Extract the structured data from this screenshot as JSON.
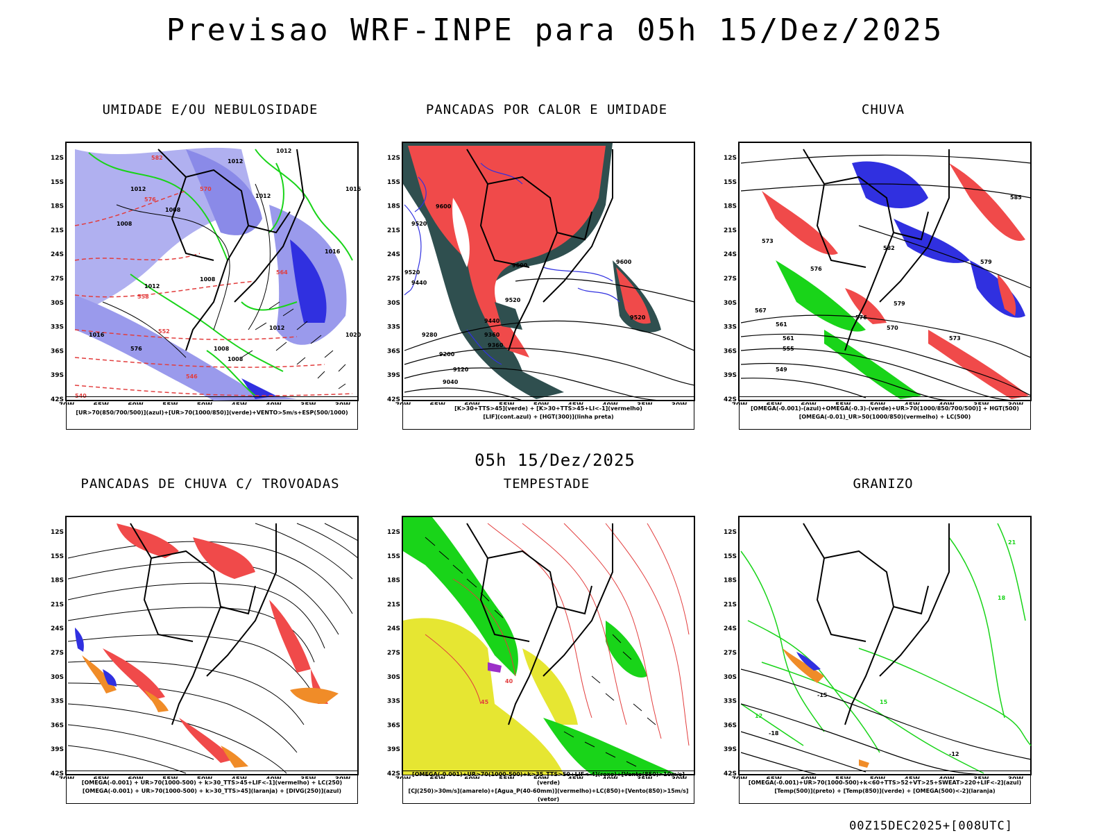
{
  "title": "Previsao WRF-INPE  para 05h 15/Dez/2025",
  "mid_title": "05h 15/Dez/2025",
  "footer": "00Z15DEC2025+[008UTC]",
  "axes": {
    "lat_ticks": [
      "12S",
      "15S",
      "18S",
      "21S",
      "24S",
      "27S",
      "30S",
      "33S",
      "36S",
      "39S",
      "42S"
    ],
    "lon_ticks": [
      "70W",
      "65W",
      "60W",
      "55W",
      "50W",
      "45W",
      "40W",
      "35W",
      "30W"
    ]
  },
  "panels": [
    {
      "title": "UMIDADE E/OU NEBULOSIDADE",
      "legend": [
        "[UR>70(850/700/500)](azul)+[UR>70(1000/850)](verde)+VENTO>5m/s+ESP(500/1000)"
      ],
      "labels": [
        "1012",
        "1012",
        "1012",
        "1008",
        "1008",
        "1012",
        "1016",
        "1008",
        "1012",
        "1016",
        "1016",
        "1020",
        "1008",
        "1008",
        "1012",
        "576",
        "582",
        "576",
        "570",
        "564",
        "558",
        "552",
        "546",
        "540"
      ]
    },
    {
      "title": "PANCADAS POR CALOR E UMIDADE",
      "legend": [
        "[K>30+TTS>45](verde) + [K>30+TTS>45+LI<-1](vermelho)",
        "[LIF](cont.azul) + [HGT(300)](linha preta)"
      ],
      "labels": [
        "9600",
        "9520",
        "9440",
        "9360",
        "9280",
        "9200",
        "9120",
        "9040",
        "9600",
        "9520",
        "9520",
        "9600",
        "9520",
        "9440",
        "9360"
      ]
    },
    {
      "title": "CHUVA",
      "legend": [
        "[OMEGA(-0.001)-(azul)+OMEGA(-0.3)-(verde)+UR>70(1000/850/700/500)] + HGT(500)",
        "[OMEGA(-0.01)_UR>50(1000/850)(vermelho) + LC(500)"
      ],
      "labels": [
        "585",
        "579",
        "573",
        "567",
        "561",
        "561",
        "555",
        "549",
        "582",
        "576",
        "570",
        "573",
        "576",
        "579"
      ]
    },
    {
      "title": "PANCADAS DE CHUVA C/ TROVOADAS",
      "legend": [
        "[OMEGA(-0.001) + UR>70(1000-500) + k>30_TTS>45+LIF<-1](vermelho) + LC(250)",
        "[OMEGA(-0.001) + UR>70(1000-500) + k>30_TTS>45](laranja) + [DIVG(250)](azul)"
      ],
      "labels": []
    },
    {
      "title": "TEMPESTADE",
      "legend": [
        "[OMEGA(-0.001)+UR>70(1000-500)+k>35_TTS>50+LIF<-4](roxo)+[Vento(850)>10m/s](verde)",
        "[CJ(250)>30m/s](amarelo)+[Agua_P(40-60mm)](vermelho)+LC(850)+[Vento(850)>15m/s](vetor)"
      ],
      "labels": [
        "40",
        "45"
      ]
    },
    {
      "title": "GRANIZO",
      "legend": [
        "[OMEGA(-0.001)+UR>70(1000-500)+k<60+TTS>52+VT>25+SWEAT>220+LIF<-2](azul)",
        "[Temp(500)](preto) + [Temp(850)](verde) + [OMEGA(500)<-2](laranja)"
      ],
      "labels": [
        "21",
        "18",
        "15",
        "12",
        "-12",
        "-15",
        "-18"
      ]
    }
  ],
  "colors": {
    "blue_fill": "#8a8ae8",
    "deep_blue": "#3030e0",
    "green": "#19d419",
    "red": "#f04a4a",
    "dark_teal": "#2f4f4f",
    "orange": "#f08c28",
    "yellow": "#e6e632",
    "purple": "#9b30c8"
  }
}
